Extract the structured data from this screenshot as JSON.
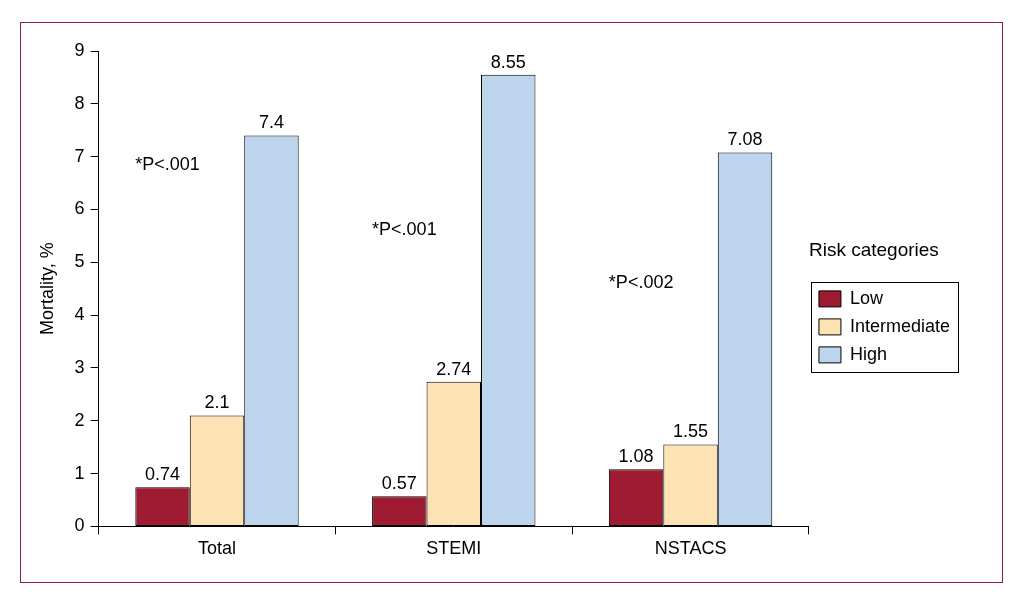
{
  "chart_data": {
    "type": "bar",
    "categories": [
      "Total",
      "STEMI",
      "NSTACS"
    ],
    "series": [
      {
        "name": "Low",
        "color": "#9e1b32",
        "values": [
          0.74,
          0.57,
          1.08
        ]
      },
      {
        "name": "Intermediate",
        "color": "#fde3b4",
        "values": [
          2.1,
          2.74,
          1.55
        ]
      },
      {
        "name": "High",
        "color": "#bdd5ec",
        "values": [
          7.4,
          8.55,
          7.08
        ]
      }
    ],
    "y_label": "Mortality, %",
    "ylim": [
      0,
      9
    ],
    "yticks": [
      0,
      1,
      2,
      3,
      4,
      5,
      6,
      7,
      8,
      9
    ],
    "grid": false,
    "legend": "right",
    "legend_title": "Risk categories",
    "data_labels": true,
    "annotations": [
      {
        "text": "*P<.001",
        "category": "Total"
      },
      {
        "text": "*P<.001",
        "category": "STEMI"
      },
      {
        "text": "*P<.002",
        "category": "NSTACS"
      }
    ]
  }
}
